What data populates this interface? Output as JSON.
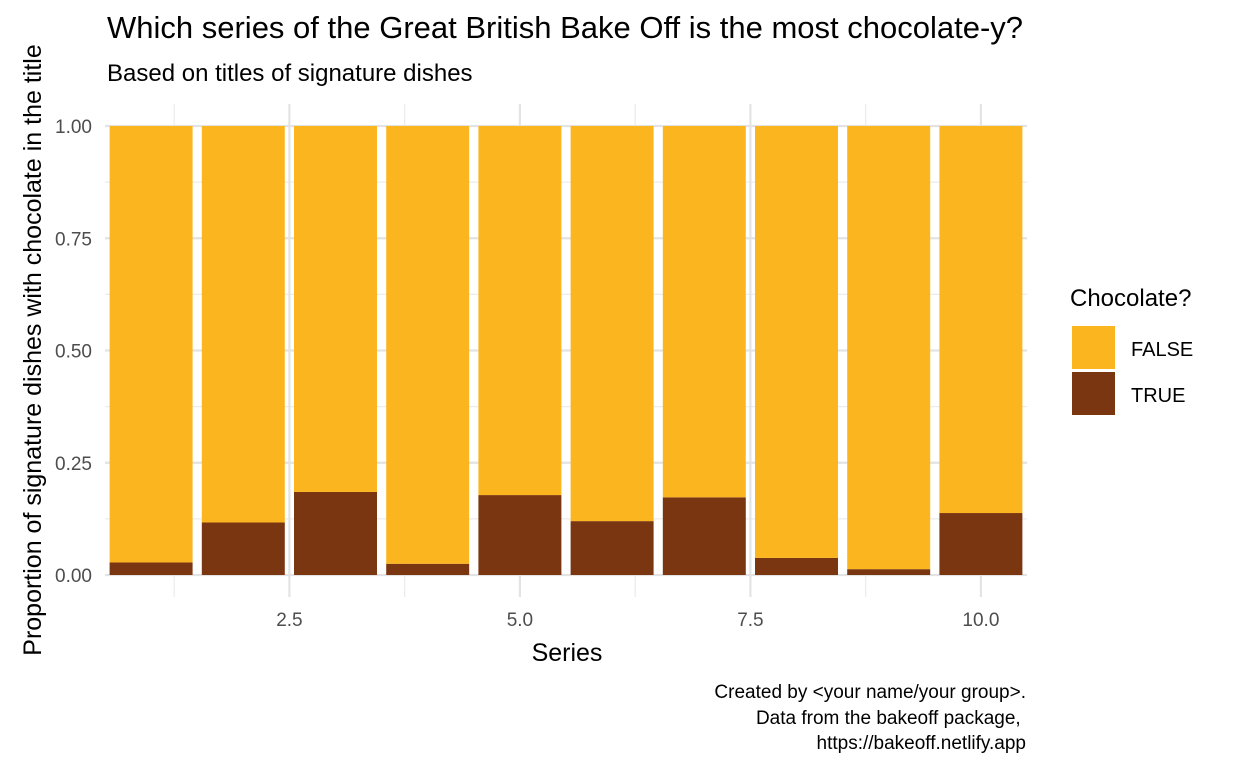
{
  "chart_data": {
    "type": "bar",
    "stacked": true,
    "title": "Which series of the Great British Bake Off is the most chocolate-y?",
    "subtitle": "Based on titles of signature dishes",
    "xlabel": "Series",
    "ylabel": "Proportion of signature dishes with chocolate in the title",
    "x": [
      1,
      2,
      3,
      4,
      5,
      6,
      7,
      8,
      9,
      10
    ],
    "x_ticks": [
      {
        "value": 2.5,
        "label": "2.5"
      },
      {
        "value": 5.0,
        "label": "5.0"
      },
      {
        "value": 7.5,
        "label": "7.5"
      },
      {
        "value": 10.0,
        "label": "10.0"
      }
    ],
    "y_ticks": [
      {
        "value": 0.0,
        "label": "0.00"
      },
      {
        "value": 0.25,
        "label": "0.25"
      },
      {
        "value": 0.5,
        "label": "0.50"
      },
      {
        "value": 0.75,
        "label": "0.75"
      },
      {
        "value": 1.0,
        "label": "1.00"
      }
    ],
    "xlim": [
      0.5,
      10.5
    ],
    "ylim": [
      0,
      1
    ],
    "grid": true,
    "legend_title": "Chocolate?",
    "legend_position": "right",
    "series": [
      {
        "name": "FALSE",
        "color": "#FBB61F",
        "values": [
          0.972,
          0.883,
          0.815,
          0.975,
          0.822,
          0.88,
          0.827,
          0.962,
          0.987,
          0.862
        ]
      },
      {
        "name": "TRUE",
        "color": "#7A3511",
        "values": [
          0.028,
          0.117,
          0.185,
          0.025,
          0.178,
          0.12,
          0.173,
          0.038,
          0.013,
          0.138
        ]
      }
    ],
    "caption": [
      "Created by <your name/your group>.",
      "Data from the bakeoff package, ",
      "https://bakeoff.netlify.app"
    ]
  }
}
